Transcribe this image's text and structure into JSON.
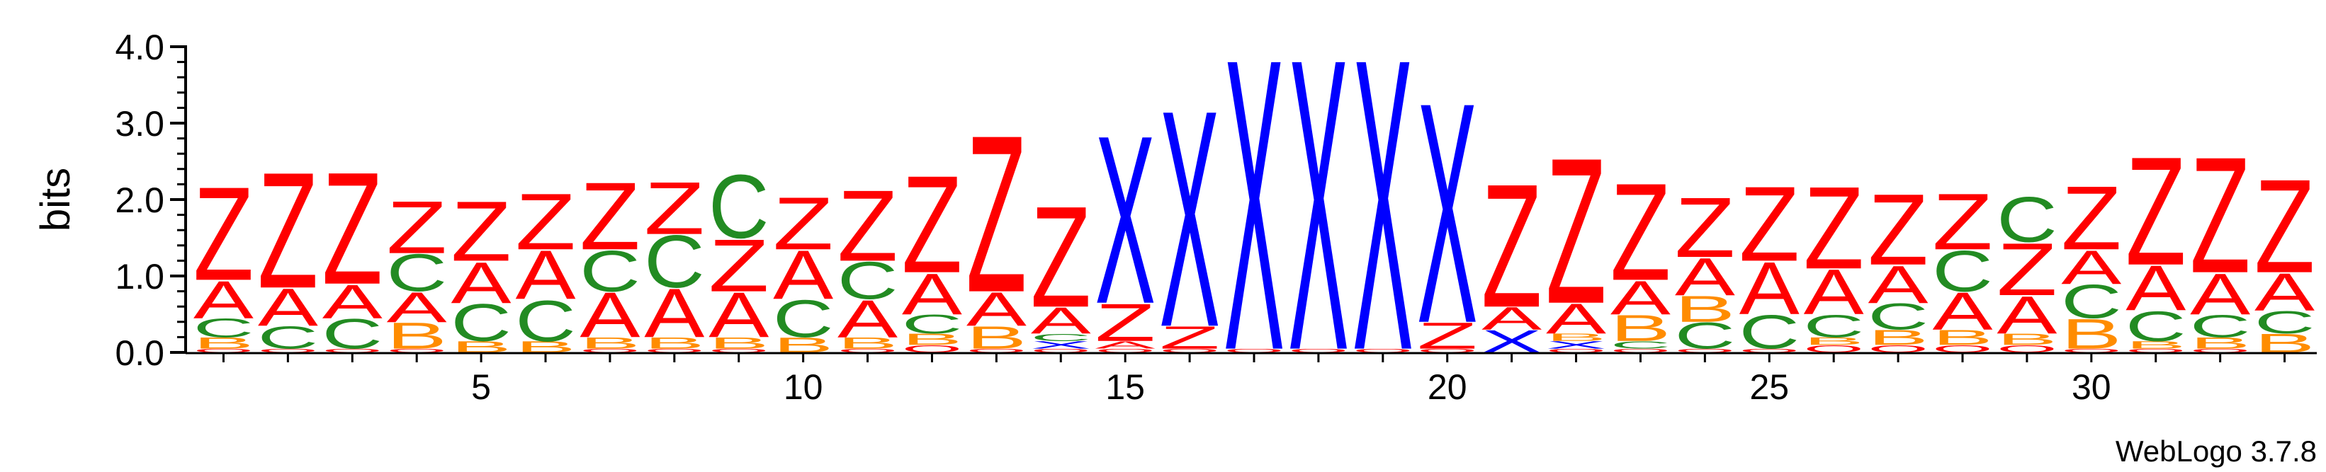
{
  "chart_data": {
    "type": "sequence-logo",
    "ylabel": "bits",
    "ylim": [
      0,
      4.0
    ],
    "y_ticks": [
      "0.0",
      "1.0",
      "2.0",
      "3.0",
      "4.0"
    ],
    "x_range": [
      1,
      33
    ],
    "x_ticks": [
      "5",
      "10",
      "15",
      "20",
      "25",
      "30"
    ],
    "credit": "WebLogo 3.7.8",
    "colors": {
      "Z": "#ff0000",
      "A": "#ff0000",
      "X": "#0000ff",
      "C": "#228b22",
      "B": "#ff8c00",
      "Q": "#ff0000"
    },
    "positions": [
      {
        "x": 1,
        "stack": [
          [
            "Q",
            0.05
          ],
          [
            "B",
            0.15
          ],
          [
            "C",
            0.25
          ],
          [
            "A",
            0.5
          ],
          [
            "Z",
            1.25
          ]
        ]
      },
      {
        "x": 2,
        "stack": [
          [
            "Q",
            0.05
          ],
          [
            "C",
            0.3
          ],
          [
            "A",
            0.5
          ],
          [
            "Z",
            1.55
          ]
        ]
      },
      {
        "x": 3,
        "stack": [
          [
            "Q",
            0.05
          ],
          [
            "C",
            0.4
          ],
          [
            "A",
            0.45
          ],
          [
            "Z",
            1.5
          ]
        ]
      },
      {
        "x": 4,
        "stack": [
          [
            "Q",
            0.05
          ],
          [
            "B",
            0.35
          ],
          [
            "A",
            0.4
          ],
          [
            "C",
            0.5
          ],
          [
            "Z",
            0.7
          ]
        ]
      },
      {
        "x": 5,
        "stack": [
          [
            "B",
            0.15
          ],
          [
            "C",
            0.5
          ],
          [
            "A",
            0.55
          ],
          [
            "Z",
            0.8
          ]
        ]
      },
      {
        "x": 6,
        "stack": [
          [
            "B",
            0.15
          ],
          [
            "C",
            0.55
          ],
          [
            "A",
            0.65
          ],
          [
            "Z",
            0.75
          ]
        ]
      },
      {
        "x": 7,
        "stack": [
          [
            "Q",
            0.05
          ],
          [
            "B",
            0.15
          ],
          [
            "A",
            0.6
          ],
          [
            "C",
            0.55
          ],
          [
            "Z",
            0.9
          ]
        ]
      },
      {
        "x": 8,
        "stack": [
          [
            "Q",
            0.05
          ],
          [
            "B",
            0.15
          ],
          [
            "A",
            0.65
          ],
          [
            "C",
            0.7
          ],
          [
            "Z",
            0.7
          ]
        ]
      },
      {
        "x": 9,
        "stack": [
          [
            "Q",
            0.05
          ],
          [
            "B",
            0.15
          ],
          [
            "A",
            0.6
          ],
          [
            "Z",
            0.7
          ],
          [
            "C",
            0.85
          ]
        ]
      },
      {
        "x": 10,
        "stack": [
          [
            "B",
            0.2
          ],
          [
            "C",
            0.5
          ],
          [
            "A",
            0.65
          ],
          [
            "Z",
            0.7
          ]
        ]
      },
      {
        "x": 11,
        "stack": [
          [
            "Q",
            0.05
          ],
          [
            "B",
            0.15
          ],
          [
            "A",
            0.5
          ],
          [
            "C",
            0.5
          ],
          [
            "Z",
            0.95
          ]
        ]
      },
      {
        "x": 12,
        "stack": [
          [
            "Q",
            0.1
          ],
          [
            "B",
            0.15
          ],
          [
            "C",
            0.25
          ],
          [
            "A",
            0.55
          ],
          [
            "Z",
            1.3
          ]
        ]
      },
      {
        "x": 13,
        "stack": [
          [
            "Q",
            0.05
          ],
          [
            "B",
            0.3
          ],
          [
            "A",
            0.45
          ],
          [
            "Z",
            2.1
          ]
        ]
      },
      {
        "x": 14,
        "stack": [
          [
            "Q",
            0.05
          ],
          [
            "X",
            0.1
          ],
          [
            "C",
            0.1
          ],
          [
            "A",
            0.35
          ],
          [
            "Z",
            1.35
          ]
        ]
      },
      {
        "x": 15,
        "stack": [
          [
            "Q",
            0.05
          ],
          [
            "A",
            0.1
          ],
          [
            "Z",
            0.5
          ],
          [
            "X",
            2.25
          ]
        ]
      },
      {
        "x": 16,
        "stack": [
          [
            "Q",
            0.05
          ],
          [
            "Z",
            0.3
          ],
          [
            "X",
            2.9
          ]
        ]
      },
      {
        "x": 17,
        "stack": [
          [
            "Q",
            0.05
          ],
          [
            "X",
            3.9
          ]
        ]
      },
      {
        "x": 18,
        "stack": [
          [
            "Q",
            0.05
          ],
          [
            "X",
            3.9
          ]
        ]
      },
      {
        "x": 19,
        "stack": [
          [
            "Q",
            0.05
          ],
          [
            "X",
            3.9
          ]
        ]
      },
      {
        "x": 20,
        "stack": [
          [
            "Q",
            0.05
          ],
          [
            "Z",
            0.35
          ],
          [
            "X",
            2.95
          ]
        ]
      },
      {
        "x": 21,
        "stack": [
          [
            "X",
            0.3
          ],
          [
            "A",
            0.3
          ],
          [
            "Z",
            1.65
          ]
        ]
      },
      {
        "x": 22,
        "stack": [
          [
            "Q",
            0.05
          ],
          [
            "X",
            0.1
          ],
          [
            "B",
            0.1
          ],
          [
            "A",
            0.4
          ],
          [
            "Z",
            1.95
          ]
        ]
      },
      {
        "x": 23,
        "stack": [
          [
            "Q",
            0.05
          ],
          [
            "C",
            0.1
          ],
          [
            "B",
            0.35
          ],
          [
            "A",
            0.45
          ],
          [
            "Z",
            1.3
          ]
        ]
      },
      {
        "x": 24,
        "stack": [
          [
            "Q",
            0.05
          ],
          [
            "C",
            0.35
          ],
          [
            "B",
            0.35
          ],
          [
            "A",
            0.5
          ],
          [
            "Z",
            0.8
          ]
        ]
      },
      {
        "x": 25,
        "stack": [
          [
            "Q",
            0.05
          ],
          [
            "C",
            0.45
          ],
          [
            "A",
            0.7
          ],
          [
            "Z",
            1.0
          ]
        ]
      },
      {
        "x": 26,
        "stack": [
          [
            "Q",
            0.1
          ],
          [
            "B",
            0.1
          ],
          [
            "C",
            0.3
          ],
          [
            "A",
            0.6
          ],
          [
            "Z",
            1.1
          ]
        ]
      },
      {
        "x": 27,
        "stack": [
          [
            "Q",
            0.1
          ],
          [
            "B",
            0.2
          ],
          [
            "C",
            0.35
          ],
          [
            "A",
            0.5
          ],
          [
            "Z",
            0.95
          ]
        ]
      },
      {
        "x": 28,
        "stack": [
          [
            "Q",
            0.1
          ],
          [
            "B",
            0.2
          ],
          [
            "A",
            0.5
          ],
          [
            "C",
            0.55
          ],
          [
            "Z",
            0.75
          ]
        ]
      },
      {
        "x": 29,
        "stack": [
          [
            "Q",
            0.1
          ],
          [
            "B",
            0.15
          ],
          [
            "A",
            0.5
          ],
          [
            "Z",
            0.7
          ],
          [
            "C",
            0.6
          ]
        ]
      },
      {
        "x": 30,
        "stack": [
          [
            "Q",
            0.05
          ],
          [
            "B",
            0.4
          ],
          [
            "C",
            0.45
          ],
          [
            "A",
            0.45
          ],
          [
            "Z",
            0.85
          ]
        ]
      },
      {
        "x": 31,
        "stack": [
          [
            "Q",
            0.05
          ],
          [
            "B",
            0.1
          ],
          [
            "C",
            0.4
          ],
          [
            "A",
            0.6
          ],
          [
            "Z",
            1.45
          ]
        ]
      },
      {
        "x": 32,
        "stack": [
          [
            "Q",
            0.05
          ],
          [
            "B",
            0.15
          ],
          [
            "C",
            0.3
          ],
          [
            "A",
            0.55
          ],
          [
            "Z",
            1.55
          ]
        ]
      },
      {
        "x": 33,
        "stack": [
          [
            "B",
            0.25
          ],
          [
            "C",
            0.3
          ],
          [
            "A",
            0.5
          ],
          [
            "Z",
            1.25
          ]
        ]
      }
    ]
  }
}
